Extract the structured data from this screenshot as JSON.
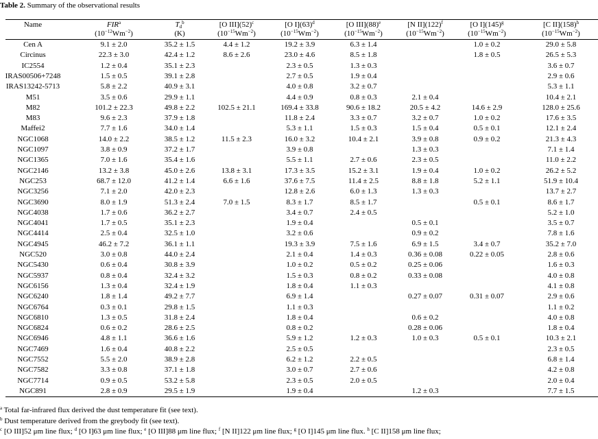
{
  "caption": {
    "label": "Table 2.",
    "text": "Summary of the observational results"
  },
  "table": {
    "headers": [
      {
        "name": [
          {
            "text": "Name"
          }
        ],
        "unit": []
      },
      {
        "name": [
          {
            "text": "FIR",
            "style": "italic"
          },
          {
            "text": "a",
            "style": "sup"
          }
        ],
        "unit": [
          {
            "text": "(10"
          },
          {
            "text": "−12",
            "style": "sup"
          },
          {
            "text": "Wm"
          },
          {
            "text": "−2",
            "style": "sup"
          },
          {
            "text": ")"
          }
        ]
      },
      {
        "name": [
          {
            "text": "T",
            "style": "italic"
          },
          {
            "text": "d",
            "style": "sub"
          },
          {
            "text": "b",
            "style": "sup"
          }
        ],
        "unit": [
          {
            "text": "(K)"
          }
        ]
      },
      {
        "name": [
          {
            "text": "[O III](52)"
          },
          {
            "text": "c",
            "style": "sup"
          }
        ],
        "unit": [
          {
            "text": "(10"
          },
          {
            "text": "−15",
            "style": "sup"
          },
          {
            "text": "Wm"
          },
          {
            "text": "−2",
            "style": "sup"
          },
          {
            "text": ")"
          }
        ]
      },
      {
        "name": [
          {
            "text": "[O I](63)"
          },
          {
            "text": "d",
            "style": "sup"
          }
        ],
        "unit": [
          {
            "text": "(10"
          },
          {
            "text": "−15",
            "style": "sup"
          },
          {
            "text": "Wm"
          },
          {
            "text": "−2",
            "style": "sup"
          },
          {
            "text": ")"
          }
        ]
      },
      {
        "name": [
          {
            "text": "[O III](88)"
          },
          {
            "text": "e",
            "style": "sup"
          }
        ],
        "unit": [
          {
            "text": "(10"
          },
          {
            "text": "−15",
            "style": "sup"
          },
          {
            "text": "Wm"
          },
          {
            "text": "−2",
            "style": "sup"
          },
          {
            "text": ")"
          }
        ]
      },
      {
        "name": [
          {
            "text": "[N II](122)"
          },
          {
            "text": "f",
            "style": "sup"
          }
        ],
        "unit": [
          {
            "text": "(10"
          },
          {
            "text": "−15",
            "style": "sup"
          },
          {
            "text": "Wm"
          },
          {
            "text": "−2",
            "style": "sup"
          },
          {
            "text": ")"
          }
        ]
      },
      {
        "name": [
          {
            "text": "[O I](145)"
          },
          {
            "text": "g",
            "style": "sup"
          }
        ],
        "unit": [
          {
            "text": "(10"
          },
          {
            "text": "−15",
            "style": "sup"
          },
          {
            "text": "Wm"
          },
          {
            "text": "−2",
            "style": "sup"
          },
          {
            "text": ")"
          }
        ]
      },
      {
        "name": [
          {
            "text": "[C II](158)"
          },
          {
            "text": "h",
            "style": "sup"
          }
        ],
        "unit": [
          {
            "text": "(10"
          },
          {
            "text": "−15",
            "style": "sup"
          },
          {
            "text": "Wm"
          },
          {
            "text": "−2",
            "style": "sup"
          },
          {
            "text": ")"
          }
        ]
      }
    ],
    "rows": [
      [
        "Cen A",
        "9.1 ± 2.0",
        "35.2 ± 1.5",
        "4.4 ± 1.2",
        "19.2 ± 3.9",
        "6.3 ± 1.4",
        null,
        "1.0 ± 0.2",
        "29.0 ± 5.8"
      ],
      [
        "Circinus",
        "22.3 ± 3.0",
        "42.4 ± 1.2",
        "8.6 ± 2.6",
        "23.0 ± 4.6",
        "8.5 ± 1.8",
        null,
        "1.8 ± 0.5",
        "26.5 ± 5.3"
      ],
      [
        "IC2554",
        "1.2 ± 0.4",
        "35.1 ± 2.3",
        null,
        "2.3 ± 0.5",
        "1.3 ± 0.3",
        null,
        null,
        "3.6 ± 0.7"
      ],
      [
        "IRAS00506+7248",
        "1.5 ± 0.5",
        "39.1 ± 2.8",
        null,
        "2.7 ± 0.5",
        "1.9 ± 0.4",
        null,
        null,
        "2.9 ± 0.6"
      ],
      [
        "IRAS13242-5713",
        "5.8 ± 2.2",
        "40.9 ± 3.1",
        null,
        "4.0 ± 0.8",
        "3.2 ± 0.7",
        null,
        null,
        "5.3 ± 1.1"
      ],
      [
        "M51",
        "3.5 ± 0.6",
        "29.9 ± 1.1",
        null,
        "4.4 ± 0.9",
        "0.8 ± 0.3",
        "2.1 ± 0.4",
        null,
        "10.4 ± 2.1"
      ],
      [
        "M82",
        "101.2 ± 22.3",
        "49.8 ± 2.2",
        "102.5 ± 21.1",
        "169.4 ± 33.8",
        "90.6 ± 18.2",
        "20.5 ± 4.2",
        "14.6 ± 2.9",
        "128.0 ± 25.6"
      ],
      [
        "M83",
        "9.6 ± 2.3",
        "37.9 ± 1.8",
        null,
        "11.8 ± 2.4",
        "3.3 ± 0.7",
        "3.2 ± 0.7",
        "1.0 ± 0.2",
        "17.6 ± 3.5"
      ],
      [
        "Maffei2",
        "7.7 ± 1.6",
        "34.0 ± 1.4",
        null,
        "5.3 ± 1.1",
        "1.5 ± 0.3",
        "1.5 ± 0.4",
        "0.5 ± 0.1",
        "12.1 ± 2.4"
      ],
      [
        "NGC1068",
        "14.0 ± 2.2",
        "38.5 ± 1.2",
        "11.5 ± 2.3",
        "16.0 ± 3.2",
        "10.4 ± 2.1",
        "3.9 ± 0.8",
        "0.9 ± 0.2",
        "21.3 ± 4.3"
      ],
      [
        "NGC1097",
        "3.8 ± 0.9",
        "37.2 ± 1.7",
        null,
        "3.9 ± 0.8",
        null,
        "1.3 ± 0.3",
        null,
        "7.1 ± 1.4"
      ],
      [
        "NGC1365",
        "7.0 ± 1.6",
        "35.4 ± 1.6",
        null,
        "5.5 ± 1.1",
        "2.7 ± 0.6",
        "2.3 ± 0.5",
        null,
        "11.0 ± 2.2"
      ],
      [
        "NGC2146",
        "13.2 ± 3.8",
        "45.0 ± 2.6",
        "13.8 ± 3.1",
        "17.3 ± 3.5",
        "15.2 ± 3.1",
        "1.9 ± 0.4",
        "1.0 ± 0.2",
        "26.2 ± 5.2"
      ],
      [
        "NGC253",
        "68.7 ± 12.0",
        "41.2 ± 1.4",
        "6.6 ± 1.6",
        "37.6 ± 7.5",
        "11.4 ± 2.5",
        "8.8 ± 1.8",
        "5.2 ± 1.1",
        "51.9 ± 10.4"
      ],
      [
        "NGC3256",
        "7.1 ± 2.0",
        "42.0 ± 2.3",
        null,
        "12.8 ± 2.6",
        "6.0 ± 1.3",
        "1.3 ± 0.3",
        null,
        "13.7 ± 2.7"
      ],
      [
        "NGC3690",
        "8.0 ± 1.9",
        "51.3 ± 2.4",
        "7.0 ± 1.5",
        "8.3 ± 1.7",
        "8.5 ± 1.7",
        null,
        "0.5 ± 0.1",
        "8.6 ± 1.7"
      ],
      [
        "NGC4038",
        "1.7 ± 0.6",
        "36.2 ± 2.7",
        null,
        "3.4 ± 0.7",
        "2.4 ± 0.5",
        null,
        null,
        "5.2 ± 1.0"
      ],
      [
        "NGC4041",
        "1.7 ± 0.5",
        "35.1 ± 2.3",
        null,
        "1.9 ± 0.4",
        null,
        "0.5 ± 0.1",
        null,
        "3.5 ± 0.7"
      ],
      [
        "NGC4414",
        "2.5 ± 0.4",
        "32.5 ± 1.0",
        null,
        "3.2 ± 0.6",
        null,
        "0.9 ± 0.2",
        null,
        "7.8 ± 1.6"
      ],
      [
        "NGC4945",
        "46.2 ± 7.2",
        "36.1 ± 1.1",
        null,
        "19.3 ± 3.9",
        "7.5 ± 1.6",
        "6.9 ± 1.5",
        "3.4 ± 0.7",
        "35.2 ± 7.0"
      ],
      [
        "NGC520",
        "3.0 ± 0.8",
        "44.0 ± 2.4",
        null,
        "2.1 ± 0.4",
        "1.4 ± 0.3",
        "0.36 ± 0.08",
        "0.22 ± 0.05",
        "2.8 ± 0.6"
      ],
      [
        "NGC5430",
        "0.6 ± 0.4",
        "30.8 ± 3.9",
        null,
        "1.0 ± 0.2",
        "0.5 ± 0.2",
        "0.25 ± 0.06",
        null,
        "1.6 ± 0.3"
      ],
      [
        "NGC5937",
        "0.8 ± 0.4",
        "32.4 ± 3.2",
        null,
        "1.5 ± 0.3",
        "0.8 ± 0.2",
        "0.33 ± 0.08",
        null,
        "4.0 ± 0.8"
      ],
      [
        "NGC6156",
        "1.3 ± 0.4",
        "32.4 ± 1.9",
        null,
        "1.8 ± 0.4",
        "1.1 ± 0.3",
        null,
        null,
        "4.1 ± 0.8"
      ],
      [
        "NGC6240",
        "1.8 ± 1.4",
        "49.2 ± 7.7",
        null,
        "6.9 ± 1.4",
        null,
        "0.27 ± 0.07",
        "0.31 ± 0.07",
        "2.9 ± 0.6"
      ],
      [
        "NGC6764",
        "0.3 ± 0.1",
        "29.8 ± 1.5",
        null,
        "1.1 ± 0.3",
        null,
        null,
        null,
        "1.1 ± 0.2"
      ],
      [
        "NGC6810",
        "1.3 ± 0.5",
        "31.8 ± 2.4",
        null,
        "1.8 ± 0.4",
        null,
        "0.6 ± 0.2",
        null,
        "4.0 ± 0.8"
      ],
      [
        "NGC6824",
        "0.6 ± 0.2",
        "28.6 ± 2.5",
        null,
        "0.8 ± 0.2",
        null,
        "0.28 ± 0.06",
        null,
        "1.8 ± 0.4"
      ],
      [
        "NGC6946",
        "4.8 ± 1.1",
        "36.6 ± 1.6",
        null,
        "5.9 ± 1.2",
        "1.2 ± 0.3",
        "1.0 ± 0.3",
        "0.5 ± 0.1",
        "10.3 ± 2.1"
      ],
      [
        "NGC7469",
        "1.6 ± 0.4",
        "40.8 ± 2.2",
        null,
        "2.5 ± 0.5",
        null,
        null,
        null,
        "2.3 ± 0.5"
      ],
      [
        "NGC7552",
        "5.5 ± 2.0",
        "38.9 ± 2.8",
        null,
        "6.2 ± 1.2",
        "2.2 ± 0.5",
        null,
        null,
        "6.8 ± 1.4"
      ],
      [
        "NGC7582",
        "3.3 ± 0.8",
        "37.1 ± 1.8",
        null,
        "3.0 ± 0.7",
        "2.7 ± 0.6",
        null,
        null,
        "4.2 ± 0.8"
      ],
      [
        "NGC7714",
        "0.9 ± 0.5",
        "53.2 ± 5.8",
        null,
        "2.3 ± 0.5",
        "2.0 ± 0.5",
        null,
        null,
        "2.0 ± 0.4"
      ],
      [
        "NGC891",
        "2.8 ± 0.9",
        "29.5 ± 1.9",
        null,
        "1.9 ± 0.4",
        null,
        "1.2 ± 0.3",
        null,
        "7.7 ± 1.5"
      ]
    ]
  },
  "footnotes": [
    [
      {
        "text": "a",
        "style": "sup"
      },
      {
        "text": " Total far-infrared flux derived the dust temperature fit (see text)."
      }
    ],
    [
      {
        "text": "b",
        "style": "sup"
      },
      {
        "text": " Dust temperature derived from the greybody fit (see text)."
      }
    ],
    [
      {
        "text": "c",
        "style": "sup"
      },
      {
        "text": " [O III]52 μm line flux; "
      },
      {
        "text": "d",
        "style": "sup"
      },
      {
        "text": " [O I]63 μm line flux; "
      },
      {
        "text": "e",
        "style": "sup"
      },
      {
        "text": " [O III]88 μm line flux; "
      },
      {
        "text": "f",
        "style": "sup"
      },
      {
        "text": " [N II]122 μm line flux; "
      },
      {
        "text": "g",
        "style": "sup"
      },
      {
        "text": " [O I]145 μm line flux. "
      },
      {
        "text": "h",
        "style": "sup"
      },
      {
        "text": " [C II]158 μm line flux;"
      }
    ]
  ]
}
